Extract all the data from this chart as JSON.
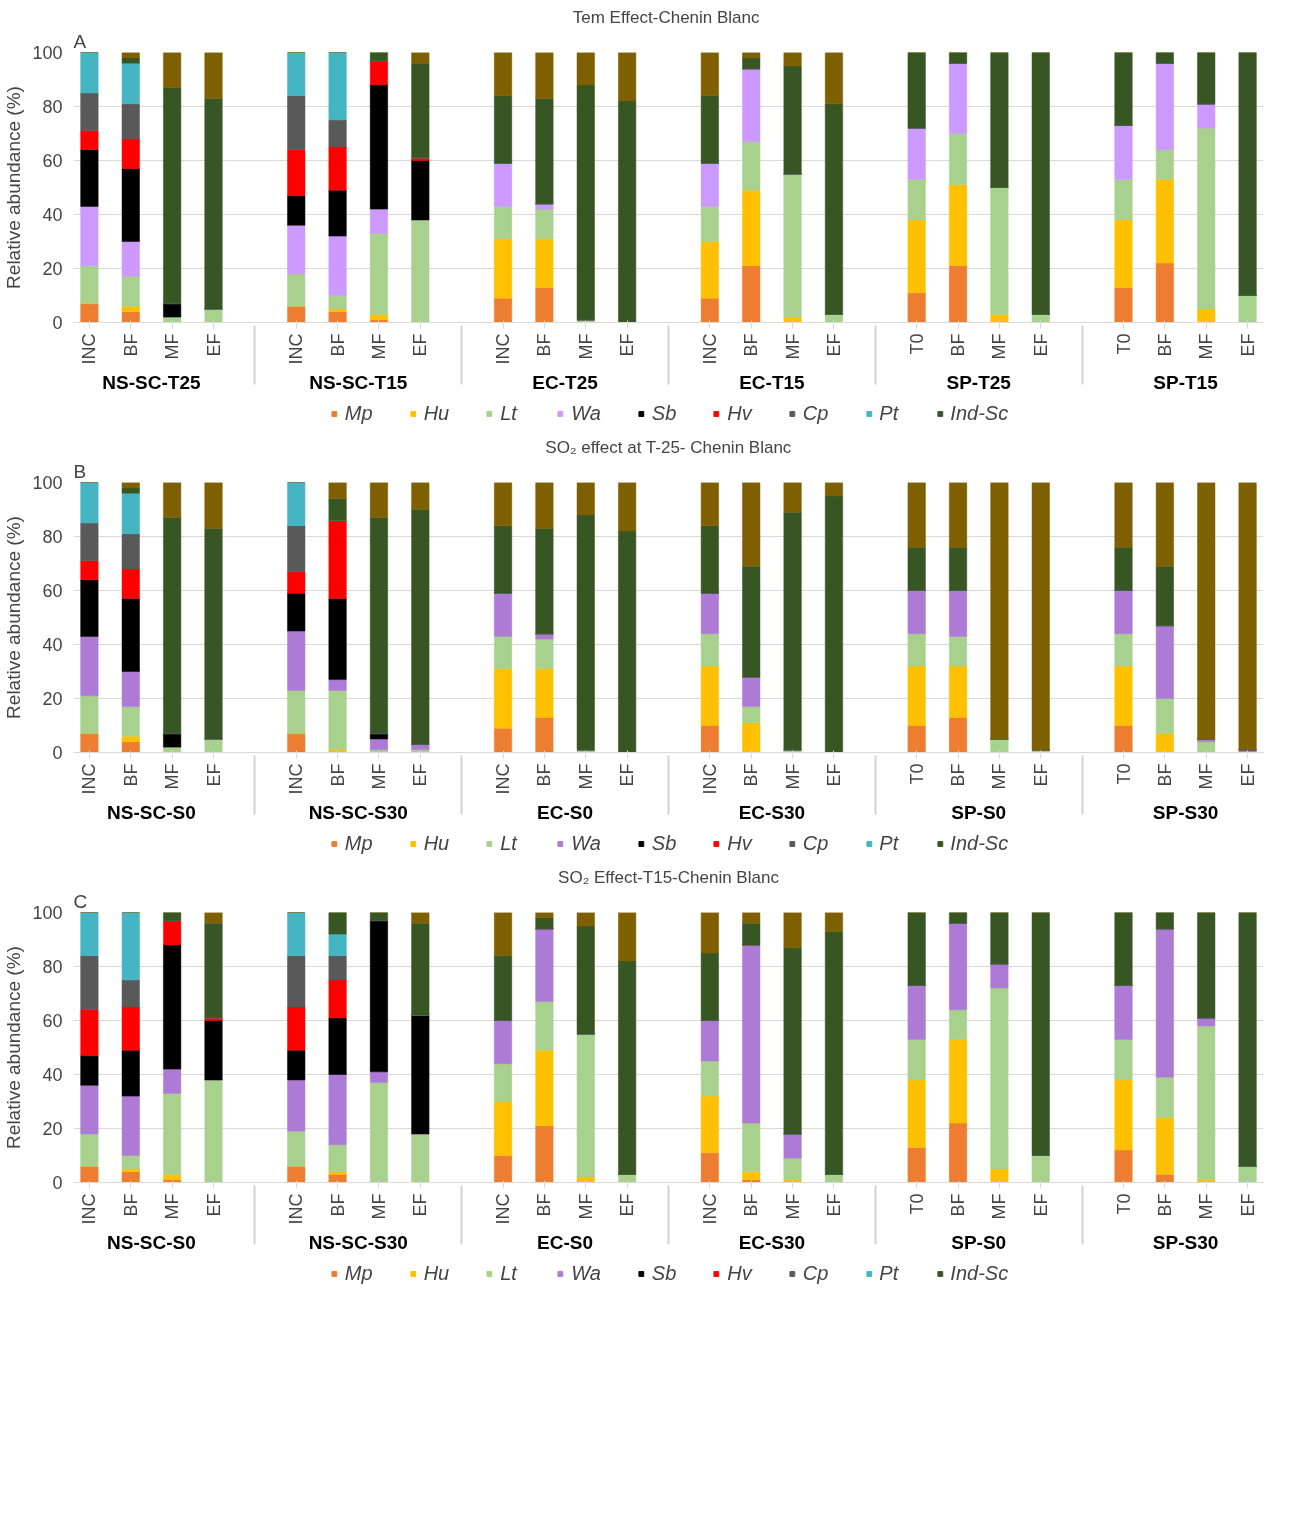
{
  "chart_data": [
    {
      "type": "bar",
      "stacked": true,
      "title": "Tem  Effect-Chenin Blanc",
      "ylabel": "Relative abundance (%)",
      "annotations": [
        "A",
        "NS-SC-T25",
        "NS-SC-T15",
        "EC-T25",
        "EC-T15",
        "SP-T25",
        "SP-T15"
      ],
      "categories": [
        "INC",
        "BF",
        "MF",
        "EF",
        "INC",
        "BF",
        "MF",
        "EF",
        "INC",
        "BF",
        "MF",
        "EF",
        "INC",
        "BF",
        "MF",
        "EF",
        "T0",
        "BF",
        "MF",
        "EF",
        "T0",
        "BF",
        "MF",
        "EF"
      ],
      "ylim": [
        0,
        100
      ],
      "yticks": [
        0,
        20,
        40,
        60,
        80,
        100
      ],
      "grid": "y",
      "legend": "bottom",
      "series": [
        {
          "name": "Mp",
          "color": "#ed7d31",
          "values": [
            7,
            4,
            0,
            0,
            6,
            4,
            1,
            0,
            9,
            13,
            0,
            0,
            9,
            21,
            0,
            0,
            11,
            21,
            0,
            0,
            13,
            22,
            0,
            0
          ]
        },
        {
          "name": "Hu",
          "color": "#ffc000",
          "values": [
            0,
            2,
            0,
            0,
            0,
            1,
            2,
            0,
            22,
            18,
            0,
            0,
            21,
            28,
            2,
            0,
            27,
            30,
            3,
            0,
            25,
            31,
            5,
            0
          ]
        },
        {
          "name": "Lt",
          "color": "#a9d18e",
          "values": [
            14,
            11,
            2,
            5,
            12,
            5,
            30,
            38,
            12,
            11,
            1,
            0,
            13,
            18,
            53,
            3,
            15,
            19,
            47,
            3,
            15,
            11,
            67,
            10
          ]
        },
        {
          "name": "Wa",
          "color": "#cc99ff",
          "values": [
            22,
            13,
            0,
            0,
            18,
            22,
            9,
            0,
            16,
            2,
            0,
            0,
            16,
            27,
            0,
            0,
            19,
            26,
            0,
            0,
            20,
            32,
            9,
            0
          ]
        },
        {
          "name": "Sb",
          "color": "#000000",
          "values": [
            21,
            27,
            5,
            0,
            11,
            17,
            46,
            22,
            0,
            0,
            0,
            0,
            0,
            0,
            0,
            0,
            0,
            0,
            0,
            0,
            0,
            0,
            0,
            0
          ]
        },
        {
          "name": "Hv",
          "color": "#ff0000",
          "values": [
            7,
            11,
            0,
            0,
            17,
            16,
            9,
            1,
            0,
            0,
            0,
            0,
            0,
            0,
            0,
            0,
            0,
            0,
            0,
            0,
            0,
            0,
            0,
            0
          ]
        },
        {
          "name": "Cp",
          "color": "#595959",
          "values": [
            14,
            13,
            0,
            0,
            20,
            10,
            0,
            0,
            0,
            0,
            0,
            0,
            0,
            0,
            0,
            0,
            0,
            0,
            0,
            0,
            0,
            0,
            0,
            0
          ]
        },
        {
          "name": "Pt",
          "color": "#45b5c4",
          "values": [
            15,
            15,
            0,
            0,
            16,
            25,
            0,
            0,
            0,
            0,
            0,
            0,
            0,
            0,
            0,
            0,
            0,
            0,
            0,
            0,
            0,
            0,
            0,
            0
          ]
        },
        {
          "name": "Ind-Sc",
          "color": "#375623",
          "values": [
            0,
            2,
            80,
            78,
            0,
            0,
            3,
            35,
            25,
            39,
            87,
            82,
            25,
            4,
            40,
            78,
            28,
            4,
            50,
            97,
            27,
            4,
            19,
            90
          ]
        },
        {
          "color": "#7f6000",
          "values": [
            0,
            2,
            13,
            17,
            0,
            0,
            0,
            4,
            16,
            17,
            12,
            18,
            16,
            2,
            5,
            19,
            0,
            0,
            0,
            0,
            0,
            0,
            0,
            0
          ]
        }
      ]
    },
    {
      "type": "bar",
      "stacked": true,
      "title": "SO₂ effect at T-25- Chenin Blanc",
      "ylabel": "Relative abundance (%)",
      "annotations": [
        "B",
        "NS-SC-S0",
        "NS-SC-S30",
        "EC-S0",
        "EC-S30",
        "SP-S0",
        "SP-S30"
      ],
      "categories": [
        "INC",
        "BF",
        "MF",
        "EF",
        "INC",
        "BF",
        "MF",
        "EF",
        "INC",
        "BF",
        "MF",
        "EF",
        "INC",
        "BF",
        "MF",
        "EF",
        "T0",
        "BF",
        "MF",
        "EF",
        "T0",
        "BF",
        "MF",
        "EF"
      ],
      "ylim": [
        0,
        100
      ],
      "yticks": [
        0,
        20,
        40,
        60,
        80,
        100
      ],
      "grid": "y",
      "legend": "bottom",
      "series": [
        {
          "name": "Mp",
          "color": "#ed7d31",
          "values": [
            7,
            4,
            0,
            0,
            7,
            0,
            0,
            0,
            9,
            13,
            0,
            0,
            10,
            0,
            0,
            0,
            10,
            13,
            0,
            0,
            10,
            0,
            0,
            0
          ]
        },
        {
          "name": "Hu",
          "color": "#ffc000",
          "values": [
            0,
            2,
            0,
            0,
            0,
            1,
            0,
            0,
            22,
            18,
            0,
            0,
            22,
            11,
            0,
            0,
            22,
            19,
            0,
            0,
            22,
            7,
            0,
            0
          ]
        },
        {
          "name": "Lt",
          "color": "#a9d18e",
          "values": [
            14,
            11,
            2,
            5,
            16,
            22,
            1,
            1,
            12,
            11,
            1,
            0,
            12,
            6,
            1,
            0,
            12,
            11,
            5,
            1,
            12,
            13,
            4,
            0
          ]
        },
        {
          "name": "Wa",
          "color": "#ad7bd6",
          "values": [
            22,
            13,
            0,
            0,
            22,
            4,
            4,
            2,
            16,
            2,
            0,
            0,
            15,
            11,
            0,
            0,
            16,
            17,
            0,
            0,
            16,
            27,
            1,
            1
          ]
        },
        {
          "name": "Sb",
          "color": "#000000",
          "values": [
            21,
            27,
            5,
            0,
            14,
            30,
            2,
            0,
            0,
            0,
            0,
            0,
            0,
            0,
            0,
            0,
            0,
            0,
            0,
            0,
            0,
            0,
            0,
            0
          ]
        },
        {
          "name": "Hv",
          "color": "#ff0000",
          "values": [
            7,
            11,
            0,
            0,
            8,
            29,
            0,
            0,
            0,
            0,
            0,
            0,
            0,
            0,
            0,
            0,
            0,
            0,
            0,
            0,
            0,
            0,
            0,
            0
          ]
        },
        {
          "name": "Cp",
          "color": "#595959",
          "values": [
            14,
            13,
            0,
            0,
            17,
            0,
            0,
            0,
            0,
            0,
            0,
            0,
            0,
            0,
            0,
            0,
            0,
            0,
            0,
            0,
            0,
            0,
            0,
            0
          ]
        },
        {
          "name": "Pt",
          "color": "#45b5c4",
          "values": [
            15,
            15,
            0,
            0,
            16,
            0,
            0,
            0,
            0,
            0,
            0,
            0,
            0,
            0,
            0,
            0,
            0,
            0,
            0,
            0,
            0,
            0,
            0,
            0
          ]
        },
        {
          "name": "Ind-Sc",
          "color": "#375623",
          "values": [
            0,
            2,
            80,
            78,
            0,
            8,
            80,
            87,
            25,
            39,
            87,
            82,
            25,
            41,
            88,
            95,
            16,
            16,
            0,
            0,
            16,
            22,
            0,
            0
          ]
        },
        {
          "color": "#7f6000",
          "values": [
            0,
            2,
            13,
            17,
            0,
            6,
            13,
            10,
            16,
            17,
            12,
            18,
            16,
            31,
            11,
            5,
            24,
            24,
            95,
            99,
            24,
            31,
            95,
            99
          ]
        }
      ]
    },
    {
      "type": "bar",
      "stacked": true,
      "title": "SO₂ Effect-T15-Chenin Blanc",
      "ylabel": "Relative abundance (%)",
      "annotations": [
        "C",
        "NS-SC-S0",
        "NS-SC-S30",
        "EC-S0",
        "EC-S30",
        "SP-S0",
        "SP-S30"
      ],
      "categories": [
        "INC",
        "BF",
        "MF",
        "EF",
        "INC",
        "BF",
        "MF",
        "EF",
        "INC",
        "BF",
        "MF",
        "EF",
        "INC",
        "BF",
        "MF",
        "EF",
        "T0",
        "BF",
        "MF",
        "EF",
        "T0",
        "BF",
        "MF",
        "EF"
      ],
      "ylim": [
        0,
        100
      ],
      "yticks": [
        0,
        20,
        40,
        60,
        80,
        100
      ],
      "grid": "y",
      "legend": "bottom",
      "series": [
        {
          "name": "Mp",
          "color": "#ed7d31",
          "values": [
            6,
            4,
            1,
            0,
            6,
            3,
            0,
            0,
            10,
            21,
            0,
            0,
            11,
            1,
            0,
            0,
            13,
            22,
            0,
            0,
            12,
            3,
            0,
            0
          ]
        },
        {
          "name": "Hu",
          "color": "#ffc000",
          "values": [
            0,
            1,
            2,
            0,
            0,
            1,
            0,
            0,
            20,
            28,
            2,
            0,
            21,
            3,
            1,
            0,
            25,
            31,
            5,
            0,
            26,
            21,
            1,
            0
          ]
        },
        {
          "name": "Lt",
          "color": "#a9d18e",
          "values": [
            12,
            5,
            30,
            38,
            13,
            10,
            37,
            18,
            14,
            18,
            53,
            3,
            13,
            18,
            8,
            3,
            15,
            11,
            67,
            10,
            15,
            15,
            57,
            6
          ]
        },
        {
          "name": "Wa",
          "color": "#ad7bd6",
          "values": [
            18,
            22,
            9,
            0,
            19,
            26,
            4,
            0,
            16,
            27,
            0,
            0,
            15,
            66,
            9,
            0,
            20,
            32,
            9,
            0,
            20,
            55,
            3,
            0
          ]
        },
        {
          "name": "Sb",
          "color": "#000000",
          "values": [
            11,
            17,
            46,
            22,
            11,
            21,
            56,
            44,
            0,
            0,
            0,
            0,
            0,
            0,
            0,
            0,
            0,
            0,
            0,
            0,
            0,
            0,
            0,
            0
          ]
        },
        {
          "name": "Hv",
          "color": "#ff0000",
          "values": [
            17,
            16,
            9,
            1,
            16,
            14,
            0,
            0,
            0,
            0,
            0,
            0,
            0,
            0,
            0,
            0,
            0,
            0,
            0,
            0,
            0,
            0,
            0,
            0
          ]
        },
        {
          "name": "Cp",
          "color": "#595959",
          "values": [
            20,
            10,
            0,
            0,
            19,
            9,
            0,
            0,
            0,
            0,
            0,
            0,
            0,
            0,
            0,
            0,
            0,
            0,
            0,
            0,
            0,
            0,
            0,
            0
          ]
        },
        {
          "name": "Pt",
          "color": "#45b5c4",
          "values": [
            16,
            25,
            0,
            0,
            16,
            8,
            0,
            0,
            0,
            0,
            0,
            0,
            0,
            0,
            0,
            0,
            0,
            0,
            0,
            0,
            0,
            0,
            0,
            0
          ]
        },
        {
          "name": "Ind-Sc",
          "color": "#375623",
          "values": [
            0,
            0,
            3,
            35,
            0,
            8,
            3,
            34,
            24,
            4,
            40,
            79,
            25,
            8,
            69,
            90,
            27,
            4,
            19,
            90,
            27,
            6,
            39,
            94
          ]
        },
        {
          "color": "#7f6000",
          "values": [
            0,
            0,
            0,
            4,
            0,
            0,
            0,
            4,
            16,
            2,
            5,
            18,
            15,
            4,
            13,
            7,
            0,
            0,
            0,
            0,
            0,
            0,
            0,
            0
          ]
        }
      ]
    }
  ]
}
